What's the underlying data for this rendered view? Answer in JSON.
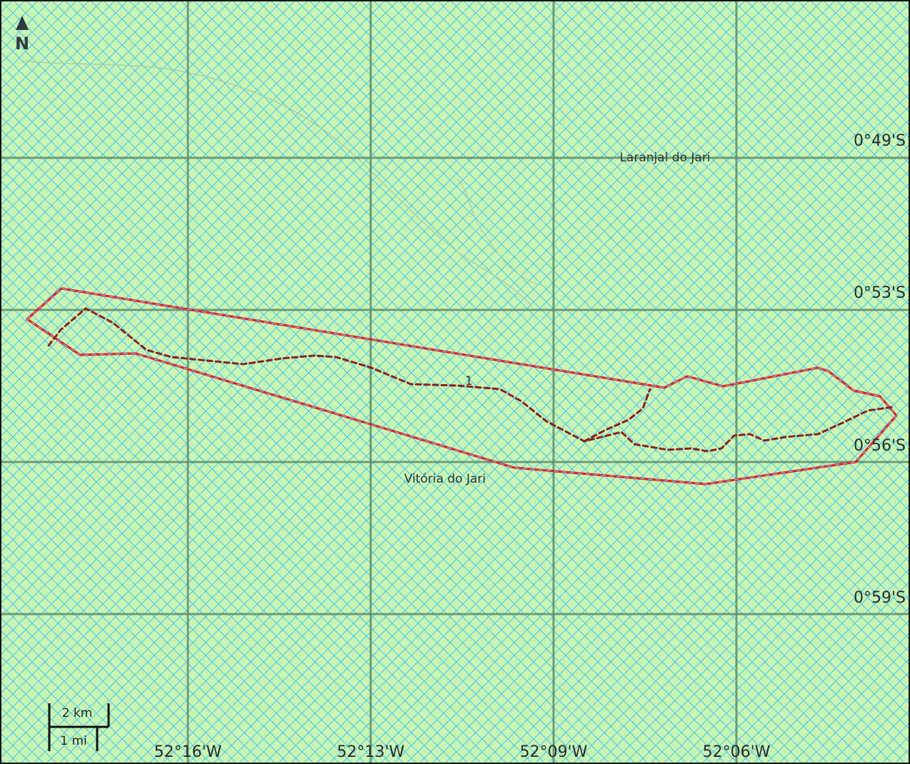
{
  "map": {
    "background_color": "#c8f5b4",
    "hatch_color": "#4fc8e6",
    "grid_color": "#5f8c6c",
    "boundary_color": "#e0202a",
    "inner_path_color": "#8a2020",
    "latitude_labels": [
      "0°49'S",
      "0°53'S",
      "0°56'S",
      "0°59'S"
    ],
    "longitude_labels": [
      "52°16'W",
      "52°13'W",
      "52°09'W",
      "52°06'W"
    ],
    "places": [
      {
        "name": "Laranjal do Jari"
      },
      {
        "name": "Vitória do Jari"
      }
    ],
    "north_arrow": {
      "label": "N",
      "icon": "north-arrow-icon"
    },
    "scale_bar": {
      "metric_label": "2 km",
      "imperial_label": "1 mi"
    },
    "inner_path_label": "1"
  }
}
